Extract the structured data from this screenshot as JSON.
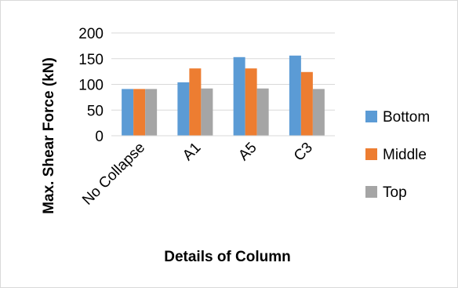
{
  "chart_data": {
    "type": "bar",
    "title": "",
    "xlabel": "Details of Column",
    "ylabel": "Max. Shear Force (kN)",
    "categories": [
      "No Collapse",
      "A1",
      "A5",
      "C3"
    ],
    "series": [
      {
        "name": "Bottom",
        "color": "#5b9bd5",
        "values": [
          91,
          104,
          153,
          156
        ]
      },
      {
        "name": "Middle",
        "color": "#ed7d31",
        "values": [
          91,
          131,
          131,
          124
        ]
      },
      {
        "name": "Top",
        "color": "#a5a5a5",
        "values": [
          91,
          92,
          92,
          91
        ]
      }
    ],
    "ylim": [
      0,
      200
    ],
    "yticks": [
      0,
      50,
      100,
      150,
      200
    ],
    "grid": true,
    "legend": "right"
  }
}
